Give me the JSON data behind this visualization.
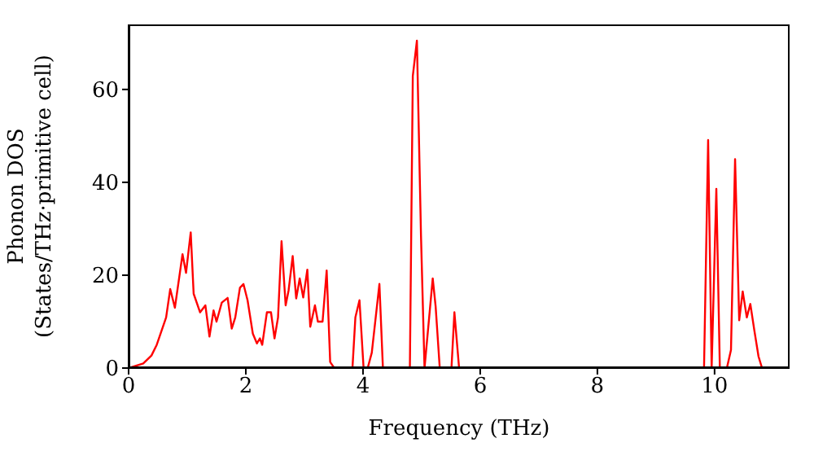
{
  "chart_data": {
    "type": "line",
    "xlabel": "Frequency (THz)",
    "ylabel": "Phonon DOS\n(States/THz·primitive cell)",
    "x": [
      0,
      0.25,
      0.39,
      0.48,
      0.64,
      0.71,
      0.79,
      0.92,
      0.98,
      1.06,
      1.11,
      1.22,
      1.31,
      1.38,
      1.45,
      1.5,
      1.59,
      1.69,
      1.76,
      1.82,
      1.9,
      1.96,
      2.03,
      2.12,
      2.19,
      2.24,
      2.28,
      2.36,
      2.43,
      2.49,
      2.55,
      2.61,
      2.68,
      2.73,
      2.8,
      2.86,
      2.92,
      2.98,
      3.05,
      3.1,
      3.18,
      3.23,
      3.31,
      3.38,
      3.44,
      3.51,
      3.82,
      3.87,
      3.94,
      4.01,
      4.08,
      4.15,
      4.28,
      4.34,
      4.8,
      4.85,
      4.92,
      4.99,
      5.05,
      5.19,
      5.24,
      5.31,
      5.51,
      5.56,
      5.64,
      9.82,
      9.89,
      9.95,
      10.03,
      10.09,
      10.21,
      10.28,
      10.35,
      10.42,
      10.48,
      10.55,
      10.61,
      10.68,
      10.75,
      10.81,
      11.28
    ],
    "series": [
      {
        "color": "#ff0000",
        "values": [
          0,
          1,
          2.7,
          5,
          10.9,
          17,
          13,
          24.5,
          20.5,
          29.2,
          16,
          12,
          13.5,
          6.8,
          12.4,
          10,
          14.1,
          15.1,
          8.5,
          10.9,
          17.3,
          18.1,
          14.6,
          7.4,
          5.3,
          6.4,
          5,
          12,
          12,
          6.4,
          10.9,
          27.3,
          13.5,
          16.7,
          24.1,
          15,
          19.3,
          15.2,
          21.2,
          8.9,
          13.5,
          10,
          10,
          21,
          1.3,
          0,
          0,
          10.9,
          14.6,
          0,
          0,
          3.3,
          18.1,
          0,
          0,
          62.9,
          70.5,
          28.4,
          0,
          19.3,
          13.2,
          0,
          0,
          12,
          0,
          0,
          49.1,
          0,
          38.6,
          0,
          0,
          3.9,
          45,
          10.3,
          16.5,
          10.9,
          13.8,
          8,
          2.5,
          0,
          0
        ]
      }
    ],
    "xlim": [
      0,
      11.28
    ],
    "ylim": [
      0,
      74
    ],
    "xticks": [
      0,
      2,
      4,
      6,
      8,
      10
    ],
    "yticks": [
      0,
      20,
      40,
      60
    ],
    "marker": "none",
    "line_style": "solid"
  }
}
